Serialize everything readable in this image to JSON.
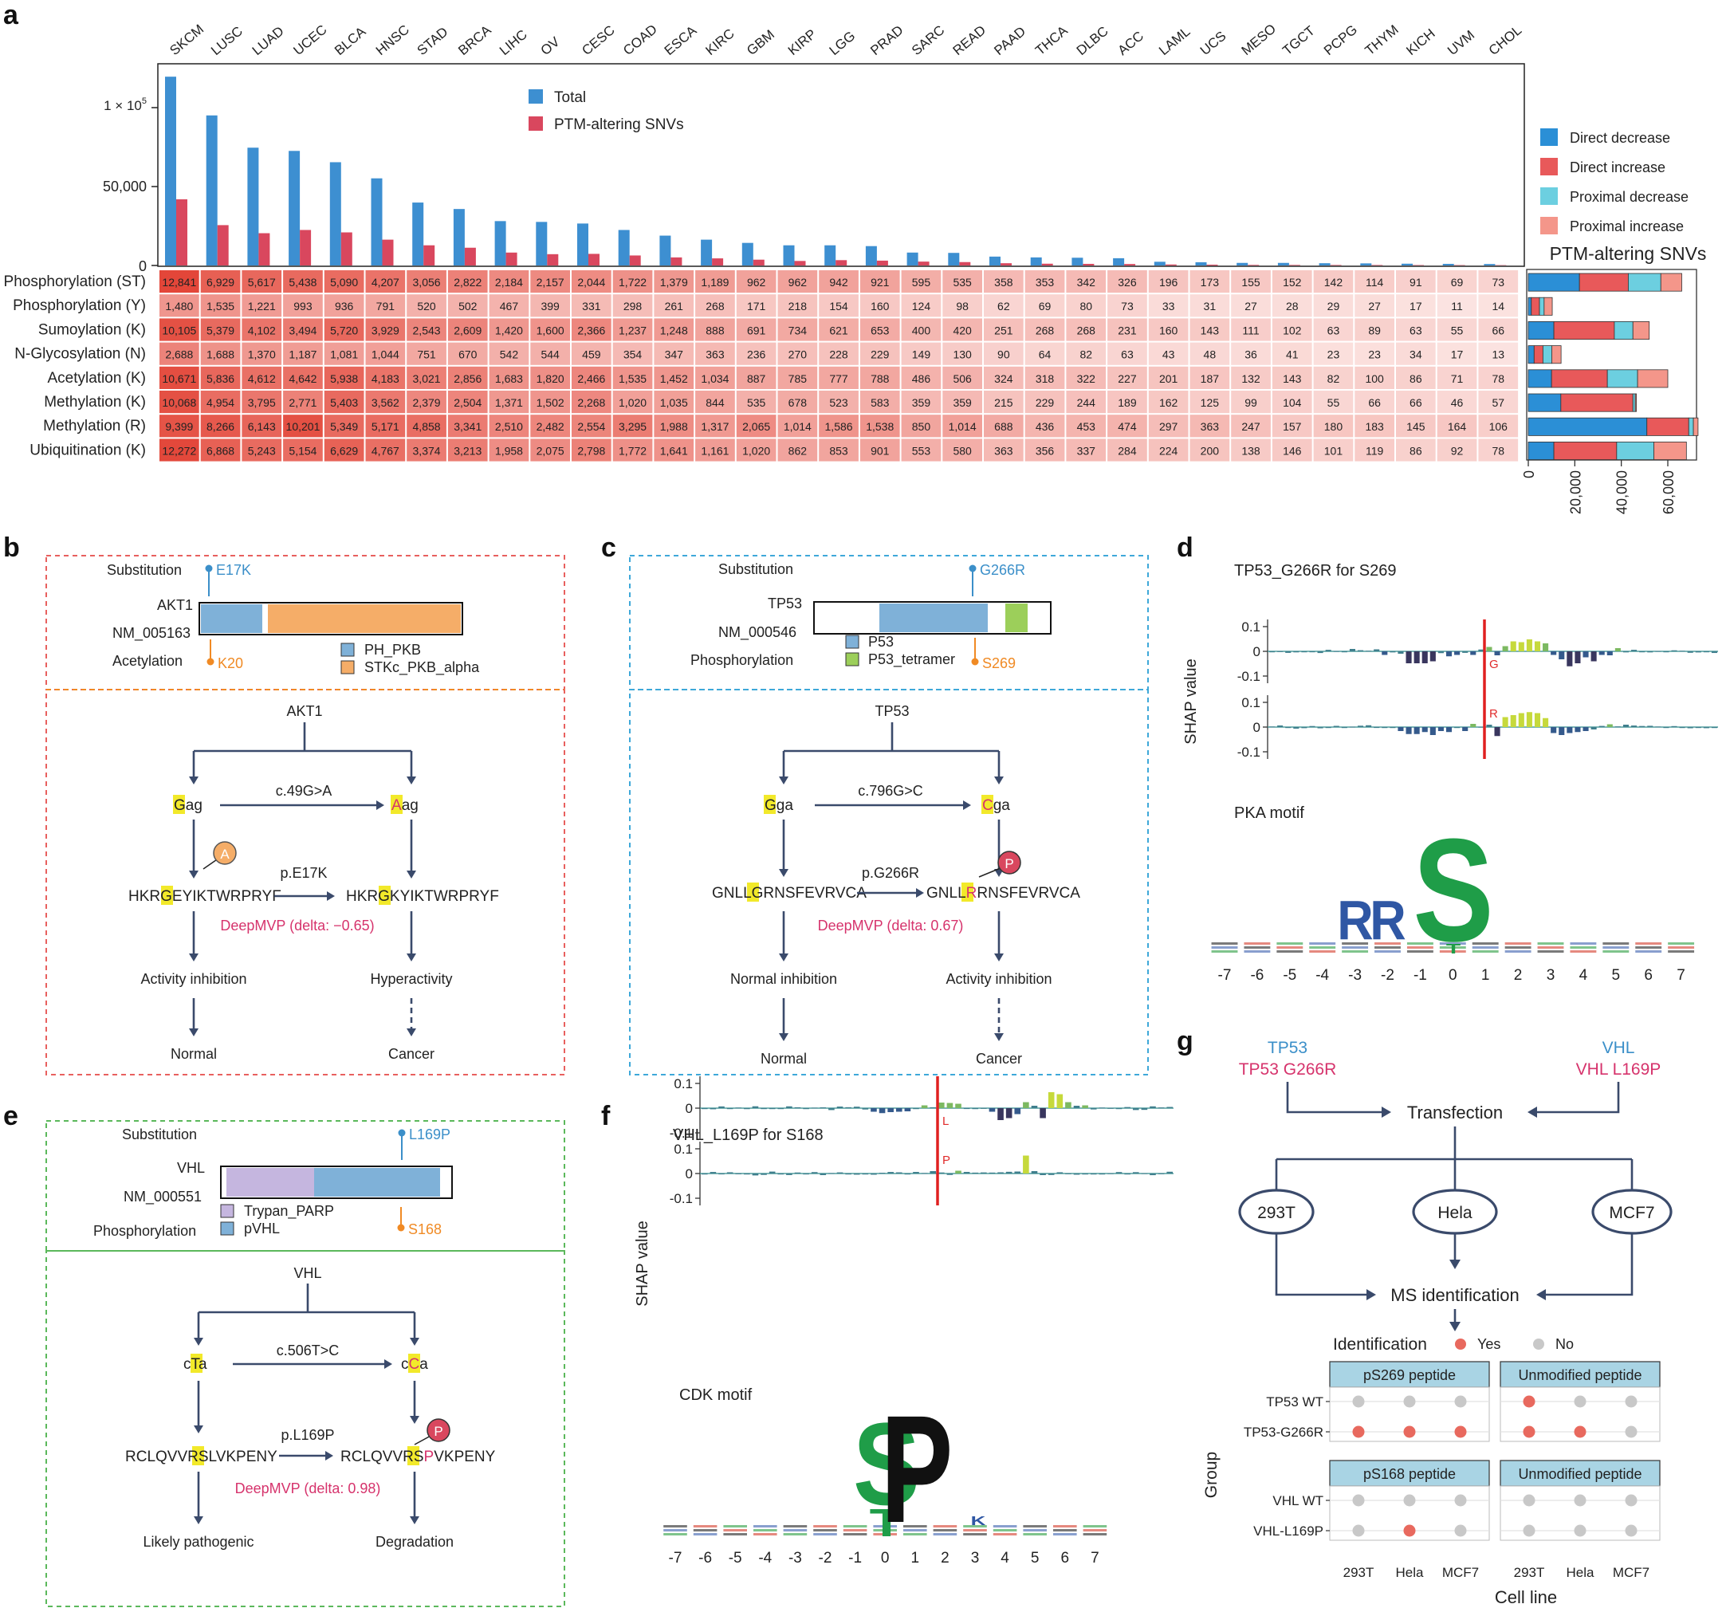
{
  "panel_labels": [
    "a",
    "b",
    "c",
    "d",
    "e",
    "f",
    "g"
  ],
  "chart_data": [
    {
      "type": "bar",
      "panel": "a",
      "categories": [
        "SKCM",
        "LUSC",
        "LUAD",
        "UCEC",
        "BLCA",
        "HNSC",
        "STAD",
        "BRCA",
        "LIHC",
        "OV",
        "CESC",
        "COAD",
        "ESCA",
        "KIRC",
        "GBM",
        "KIRP",
        "LGG",
        "PRAD",
        "SARC",
        "READ",
        "PAAD",
        "THCA",
        "DLBC",
        "ACC",
        "LAML",
        "UCS",
        "MESO",
        "TGCT",
        "PCPG",
        "THYM",
        "KICH",
        "UVM",
        "CHOL"
      ],
      "series": [
        {
          "name": "Total",
          "color": "#3d8fd1",
          "values": [
            117000,
            93000,
            73000,
            71000,
            64000,
            54000,
            39000,
            35000,
            27500,
            27000,
            26000,
            22000,
            18500,
            16000,
            14000,
            12500,
            12500,
            12000,
            8000,
            7800,
            5500,
            5000,
            4800,
            4500,
            2300,
            2000,
            1600,
            1600,
            1400,
            1300,
            1100,
            1000,
            900
          ]
        },
        {
          "name": "PTM-altering SNVs",
          "color": "#d9475e",
          "values": [
            41000,
            25000,
            20000,
            22000,
            20500,
            16000,
            12500,
            11000,
            8000,
            7000,
            7200,
            6200,
            5000,
            4400,
            3600,
            2800,
            3300,
            3000,
            2400,
            2100,
            1400,
            1100,
            1000,
            900,
            600,
            500,
            350,
            330,
            300,
            280,
            250,
            230,
            200
          ]
        }
      ],
      "ylim": [
        0,
        125000
      ],
      "yticks": [
        "50,000"
      ],
      "y_sci_tick": {
        "base": "1 × 10",
        "exp": "5"
      },
      "y_zero": "0",
      "legend": "top-center"
    },
    {
      "type": "heatmap",
      "panel": "a",
      "rows": [
        "Phosphorylation (ST)",
        "Phosphorylation (Y)",
        "Sumoylation (K)",
        "N-Glycosylation (N)",
        "Acetylation (K)",
        "Methylation (K)",
        "Methylation (R)",
        "Ubiquitination (K)"
      ],
      "columns_ref": "SKCM…CHOL (same order as bar chart)",
      "values": [
        [
          "12,841",
          "6,929",
          "5,617",
          "5,438",
          "5,090",
          "4,207",
          "3,056",
          "2,822",
          "2,184",
          "2,157",
          "2,044",
          "1,722",
          "1,379",
          "1,189",
          "962",
          "962",
          "942",
          "921",
          "595",
          "535",
          "358",
          "353",
          "342",
          "326",
          "196",
          "173",
          "155",
          "152",
          "142",
          "114",
          "91",
          "69",
          "73"
        ],
        [
          "1,480",
          "1,535",
          "1,221",
          "993",
          "936",
          "791",
          "520",
          "502",
          "467",
          "399",
          "331",
          "298",
          "261",
          "268",
          "171",
          "218",
          "154",
          "160",
          "124",
          "98",
          "62",
          "69",
          "80",
          "73",
          "33",
          "31",
          "27",
          "28",
          "29",
          "27",
          "17",
          "11",
          "14"
        ],
        [
          "10,105",
          "5,379",
          "4,102",
          "3,494",
          "5,720",
          "3,929",
          "2,543",
          "2,609",
          "1,420",
          "1,600",
          "2,366",
          "1,237",
          "1,248",
          "888",
          "691",
          "734",
          "621",
          "653",
          "400",
          "420",
          "251",
          "268",
          "268",
          "231",
          "160",
          "143",
          "111",
          "102",
          "63",
          "89",
          "63",
          "55",
          "66"
        ],
        [
          "2,688",
          "1,688",
          "1,370",
          "1,187",
          "1,081",
          "1,044",
          "751",
          "670",
          "542",
          "544",
          "459",
          "354",
          "347",
          "363",
          "236",
          "270",
          "228",
          "229",
          "149",
          "130",
          "90",
          "64",
          "82",
          "63",
          "43",
          "48",
          "36",
          "41",
          "23",
          "23",
          "34",
          "17",
          "13"
        ],
        [
          "10,671",
          "5,836",
          "4,612",
          "4,642",
          "5,938",
          "4,183",
          "3,021",
          "2,856",
          "1,683",
          "1,820",
          "2,466",
          "1,535",
          "1,452",
          "1,034",
          "887",
          "785",
          "777",
          "788",
          "486",
          "506",
          "324",
          "318",
          "322",
          "227",
          "201",
          "187",
          "132",
          "143",
          "82",
          "100",
          "86",
          "71",
          "78"
        ],
        [
          "10,068",
          "4,954",
          "3,795",
          "2,771",
          "5,403",
          "3,562",
          "2,379",
          "2,504",
          "1,371",
          "1,502",
          "2,268",
          "1,020",
          "1,035",
          "844",
          "535",
          "678",
          "523",
          "583",
          "359",
          "359",
          "215",
          "229",
          "244",
          "189",
          "162",
          "125",
          "99",
          "104",
          "55",
          "66",
          "66",
          "46",
          "57"
        ],
        [
          "9,399",
          "8,266",
          "6,143",
          "10,201",
          "5,349",
          "5,171",
          "4,858",
          "3,341",
          "2,510",
          "2,482",
          "2,554",
          "3,295",
          "1,988",
          "1,317",
          "2,065",
          "1,014",
          "1,586",
          "1,538",
          "850",
          "1,014",
          "688",
          "436",
          "453",
          "474",
          "297",
          "363",
          "247",
          "157",
          "180",
          "183",
          "145",
          "164",
          "106"
        ],
        [
          "12,272",
          "6,868",
          "5,243",
          "5,154",
          "6,629",
          "4,767",
          "3,374",
          "3,213",
          "1,958",
          "2,075",
          "2,798",
          "1,772",
          "1,641",
          "1,161",
          "1,020",
          "862",
          "853",
          "901",
          "553",
          "580",
          "363",
          "356",
          "337",
          "284",
          "224",
          "200",
          "138",
          "146",
          "101",
          "119",
          "86",
          "92",
          "78"
        ]
      ]
    },
    {
      "type": "bar",
      "panel": "a",
      "orientation": "horizontal-stacked",
      "title": "PTM-altering SNVs",
      "categories": [
        "Phosphorylation (ST)",
        "Phosphorylation (Y)",
        "Sumoylation (K)",
        "N-Glycosylation (N)",
        "Acetylation (K)",
        "Methylation (K)",
        "Methylation (R)",
        "Ubiquitination (K)"
      ],
      "series": [
        {
          "name": "Direct decrease",
          "color": "#2b8fd6",
          "values": [
            22000,
            1300,
            11000,
            2500,
            10000,
            14000,
            51000,
            11000
          ]
        },
        {
          "name": "Direct increase",
          "color": "#e8595a",
          "values": [
            21000,
            3500,
            26000,
            3800,
            24000,
            31000,
            18000,
            27000
          ]
        },
        {
          "name": "Proximal decrease",
          "color": "#6ccfe0",
          "values": [
            14000,
            2000,
            8000,
            3800,
            13000,
            1000,
            2000,
            16000
          ]
        },
        {
          "name": "Proximal increase",
          "color": "#f4968a",
          "values": [
            9000,
            3500,
            7000,
            4000,
            13000,
            500,
            2000,
            14000
          ]
        }
      ],
      "xlim": [
        0,
        72000
      ],
      "xticks": [
        "0",
        "20,000",
        "40,000",
        "60,000"
      ]
    },
    {
      "type": "bar",
      "panel": "d",
      "title": "TP53_G266R for S269",
      "ylabel": "SHAP value",
      "yticks": [
        "0.1",
        "0",
        "-0.1"
      ],
      "residue_labels": [
        "G",
        "R"
      ],
      "motif_title": "PKA motif",
      "motif_letters": [
        "R",
        "R",
        "S"
      ],
      "motif_x": [
        "-7",
        "-6",
        "-5",
        "-4",
        "-3",
        "-2",
        "-1",
        "0",
        "1",
        "2",
        "3",
        "4",
        "5",
        "6",
        "7"
      ]
    },
    {
      "type": "bar",
      "panel": "f",
      "title": "VHL_L169P for S168",
      "ylabel": "SHAP value",
      "yticks": [
        "0.1",
        "0",
        "-0.1"
      ],
      "residue_labels": [
        "L",
        "P"
      ],
      "motif_title": "CDK motif",
      "motif_letters": [
        "S",
        "P",
        "T"
      ],
      "motif_x": [
        "-7",
        "-6",
        "-5",
        "-4",
        "-3",
        "-2",
        "-1",
        "0",
        "1",
        "2",
        "3",
        "4",
        "5",
        "6",
        "7"
      ]
    },
    {
      "type": "scatter",
      "panel": "g",
      "title": "Identification",
      "xlabel": "Cell line",
      "ylabel": "Group",
      "x": [
        "293T",
        "Hela",
        "MCF7"
      ],
      "legend": [
        {
          "label": "Yes",
          "color": "#e8695e"
        },
        {
          "label": "No",
          "color": "#c8c8c8"
        }
      ],
      "facets": [
        {
          "title": "pS269 peptide",
          "groups": [
            "TP53 WT",
            "TP53-G266R"
          ],
          "yes": [
            [
              0,
              0,
              0
            ],
            [
              1,
              1,
              1
            ]
          ]
        },
        {
          "title": "Unmodified peptide",
          "groups": [
            "TP53 WT",
            "TP53-G266R"
          ],
          "yes": [
            [
              1,
              0,
              0
            ],
            [
              1,
              1,
              0
            ]
          ]
        },
        {
          "title": "pS168 peptide",
          "groups": [
            "VHL WT",
            "VHL-L169P"
          ],
          "yes": [
            [
              0,
              0,
              0
            ],
            [
              0,
              1,
              0
            ]
          ]
        },
        {
          "title": "Unmodified peptide",
          "groups": [
            "VHL WT",
            "VHL-L169P"
          ],
          "yes": [
            [
              0,
              0,
              0
            ],
            [
              0,
              0,
              0
            ]
          ]
        }
      ]
    }
  ],
  "panel_b": {
    "substitution_label": "Substitution",
    "mutation": "E17K",
    "gene": "AKT1",
    "refseq": "NM_005163",
    "ptm_label": "Acetylation",
    "ptm_site": "K20",
    "domains": [
      {
        "name": "PH_PKB",
        "color": "#7fb1d8"
      },
      {
        "name": "STKc_PKB_alpha",
        "color": "#f5ad68"
      }
    ],
    "flow_gene": "AKT1",
    "codon_wt_hl": "G",
    "codon_wt_rest": "ag",
    "codon_mut_hl": "A",
    "codon_mut_rest": "ag",
    "cdna": "c.49G>A",
    "protein_change": "p.E17K",
    "pep_wt_pre": "HKRG",
    "pep_wt_hl": "E",
    "pep_wt_post": "YIKTWRPRYF",
    "pep_mut_pre": "HKRG",
    "pep_mut_hl": "K",
    "pep_mut_post": "YIKTWRPRYF",
    "mod_symbol": "A",
    "deepmvp": "DeepMVP (delta: −0.65)",
    "outcome_wt": "Activity inhibition",
    "outcome_mut": "Hyperactivity",
    "final_wt": "Normal",
    "final_mut": "Cancer"
  },
  "panel_c": {
    "substitution_label": "Substitution",
    "mutation": "G266R",
    "gene": "TP53",
    "refseq": "NM_000546",
    "ptm_label": "Phosphorylation",
    "ptm_site": "S269",
    "domains": [
      {
        "name": "P53",
        "color": "#7fb1d8"
      },
      {
        "name": "P53_tetramer",
        "color": "#9ccf5a"
      }
    ],
    "flow_gene": "TP53",
    "codon_wt_hl": "G",
    "codon_wt_rest": "ga",
    "codon_mut_hl": "C",
    "codon_mut_rest": "ga",
    "cdna": "c.796G>C",
    "protein_change": "p.G266R",
    "pep_wt_pre": "GNLL",
    "pep_wt_hl": "G",
    "pep_wt_post": "RNSFEVRVCA",
    "pep_mut_pre": "GNLL",
    "pep_mut_hl": "R",
    "pep_mut_post": "RNSFEVRVCA",
    "mod_symbol": "P",
    "deepmvp": "DeepMVP (delta: 0.67)",
    "outcome_wt": "Normal inhibition",
    "outcome_mut": "Activity inhibition",
    "final_wt": "Normal",
    "final_mut": "Cancer"
  },
  "panel_e": {
    "substitution_label": "Substitution",
    "mutation": "L169P",
    "gene": "VHL",
    "refseq": "NM_000551",
    "ptm_label": "Phosphorylation",
    "ptm_site": "S168",
    "domains": [
      {
        "name": "Trypan_PARP",
        "color": "#c5b6df"
      },
      {
        "name": "pVHL",
        "color": "#7fb1d8"
      }
    ],
    "flow_gene": "VHL",
    "codon_wt_pre": "c",
    "codon_wt_hl": "T",
    "codon_wt_post": "a",
    "codon_mut_pre": "c",
    "codon_mut_hl": "C",
    "codon_mut_post": "a",
    "cdna": "c.506T>C",
    "protein_change": "p.L169P",
    "pep_wt_pre": "RCLQVVRS",
    "pep_wt_hl": "L",
    "pep_wt_post": "VKPENY",
    "pep_mut_pre": "RCLQVVRS",
    "pep_mut_hl": "P",
    "pep_mut_post": "VKPENY",
    "mod_symbol": "P",
    "deepmvp": "DeepMVP (delta: 0.98)",
    "outcome_wt": "Likely pathogenic",
    "outcome_mut": "Degradation"
  },
  "panel_g": {
    "left_top": "TP53",
    "left_bottom": "TP53 G266R",
    "right_top": "VHL",
    "right_bottom": "VHL L169P",
    "transfection": "Transfection",
    "cells": [
      "293T",
      "Hela",
      "MCF7"
    ],
    "ms": "MS identification"
  },
  "colors": {
    "navy": "#3a4a6b",
    "highlight": "#f2e92a",
    "red_text": "#d6336c",
    "blue_text": "#3b8fc9",
    "orange": "#f08a24"
  }
}
